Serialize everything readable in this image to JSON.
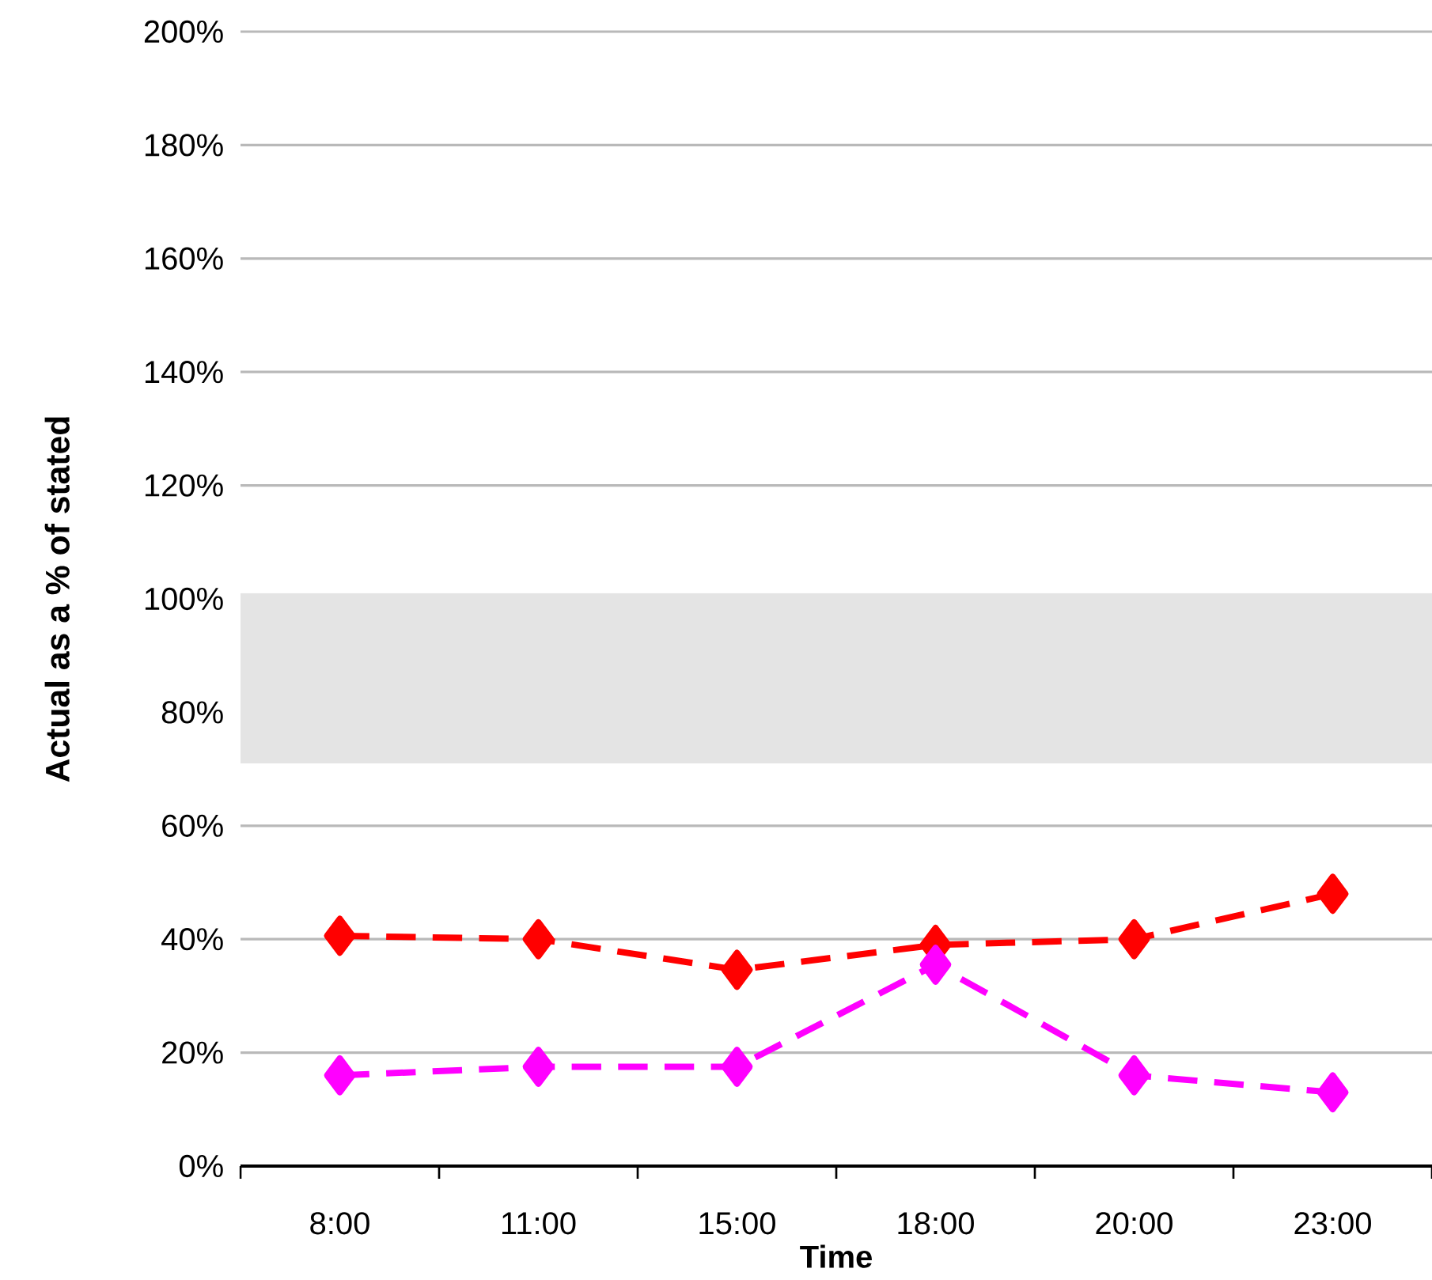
{
  "chart_data": {
    "type": "line",
    "xlabel": "Time",
    "ylabel": "Actual as a % of stated",
    "categories": [
      "8:00",
      "11:00",
      "15:00",
      "18:00",
      "20:00",
      "23:00"
    ],
    "series": [
      {
        "color": "#ff0000",
        "values": [
          40.6,
          40,
          34.6,
          39,
          40,
          48
        ]
      },
      {
        "color": "#ff00ff",
        "values": [
          16,
          17.5,
          17.5,
          35.5,
          16,
          13
        ]
      }
    ],
    "ylim": [
      0,
      200
    ],
    "yticks": [
      {
        "value": 0,
        "label": "0%"
      },
      {
        "value": 20,
        "label": "20%"
      },
      {
        "value": 40,
        "label": "40%"
      },
      {
        "value": 60,
        "label": "60%"
      },
      {
        "value": 80,
        "label": "80%"
      },
      {
        "value": 100,
        "label": "100%"
      },
      {
        "value": 120,
        "label": "120%"
      },
      {
        "value": 140,
        "label": "140%"
      },
      {
        "value": 160,
        "label": "160%"
      },
      {
        "value": 180,
        "label": "180%"
      },
      {
        "value": 200,
        "label": "200%"
      }
    ],
    "bands": [
      {
        "axis": "y",
        "from": 71,
        "to": 101,
        "color": "#e4e4e4"
      }
    ],
    "grid": "y",
    "marker": "diamond",
    "line_style": "dashed"
  }
}
